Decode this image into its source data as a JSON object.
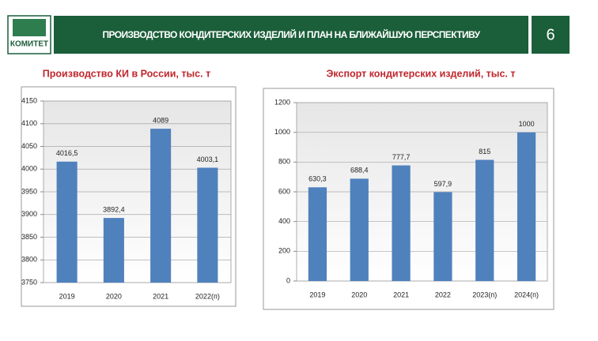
{
  "header": {
    "logo": "КОМИТЕТ",
    "title": "ПРОИЗВОДСТВО КОНДИТЕРСКИХ ИЗДЕЛИЙ И ПЛАН НА БЛИЖАЙШУЮ ПЕРСПЕКТИВУ",
    "page_number": "6"
  },
  "chart_data": [
    {
      "type": "bar",
      "title": "Производство КИ в России, тыс. т",
      "categories": [
        "2019",
        "2020",
        "2021",
        "2022(п)"
      ],
      "values": [
        4016.5,
        3892.4,
        4089,
        4003.1
      ],
      "value_labels": [
        "4016,5",
        "3892,4",
        "4089",
        "4003,1"
      ],
      "color": "#4f81bd",
      "ylim": [
        3750,
        4150
      ],
      "yticks": [
        3750,
        3800,
        3850,
        3900,
        3950,
        4000,
        4050,
        4100,
        4150
      ],
      "grid": true
    },
    {
      "type": "bar",
      "title": "Экспорт кондитерских изделий, тыс. т",
      "categories": [
        "2019",
        "2020",
        "2021",
        "2022",
        "2023(п)",
        "2024(п)"
      ],
      "values": [
        630.3,
        688.4,
        777.7,
        597.9,
        815,
        1000
      ],
      "value_labels": [
        "630,3",
        "688,4",
        "777,7",
        "597,9",
        "815",
        "1000"
      ],
      "color": "#4f81bd",
      "ylim": [
        0,
        1200
      ],
      "yticks": [
        0,
        200,
        400,
        600,
        800,
        1000,
        1200
      ],
      "grid": true
    }
  ]
}
